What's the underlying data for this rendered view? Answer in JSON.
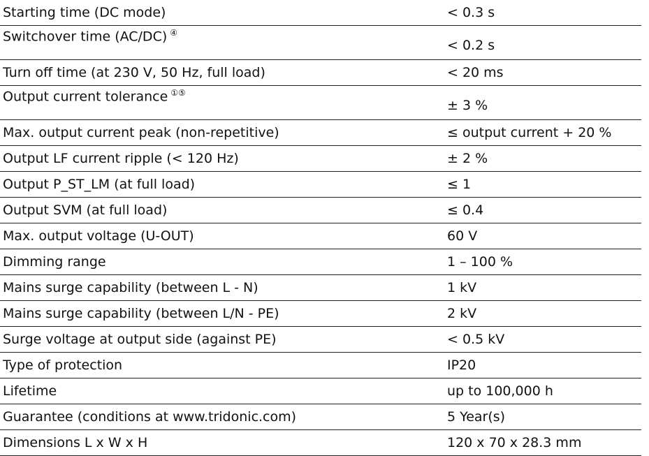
{
  "table": {
    "rows": [
      {
        "label": "Starting time (DC mode)",
        "value": "< 0.3 s"
      },
      {
        "label": "Switchover time (AC/DC)",
        "note": "④",
        "value": "< 0.2 s"
      },
      {
        "label": "Turn off time (at 230 V, 50 Hz, full load)",
        "value": "< 20 ms"
      },
      {
        "label": "Output current tolerance",
        "note": "①⑤",
        "value": "± 3 %"
      },
      {
        "label": "Max. output current peak (non-repetitive)",
        "value": "≤ output current + 20 %"
      },
      {
        "label": "Output LF current ripple (< 120 Hz)",
        "value": "± 2 %"
      },
      {
        "label": "Output P_ST_LM (at full load)",
        "value": "≤ 1"
      },
      {
        "label": "Output SVM (at full load)",
        "value": "≤ 0.4"
      },
      {
        "label": "Max. output voltage (U-OUT)",
        "value": "60 V"
      },
      {
        "label": "Dimming range",
        "value": "1 – 100 %"
      },
      {
        "label": "Mains surge capability (between L - N)",
        "value": "1 kV"
      },
      {
        "label": "Mains surge capability (between L/N - PE)",
        "value": "2 kV"
      },
      {
        "label": "Surge voltage at output side (against PE)",
        "value": "< 0.5 kV"
      },
      {
        "label": "Type of protection",
        "value": "IP20"
      },
      {
        "label": "Lifetime",
        "value": "up to 100,000 h"
      },
      {
        "label": "Guarantee (conditions at www.tridonic.com)",
        "value": "5 Year(s)"
      },
      {
        "label": "Dimensions L x W x H",
        "value": "120 x 70 x 28.3 mm"
      }
    ]
  }
}
